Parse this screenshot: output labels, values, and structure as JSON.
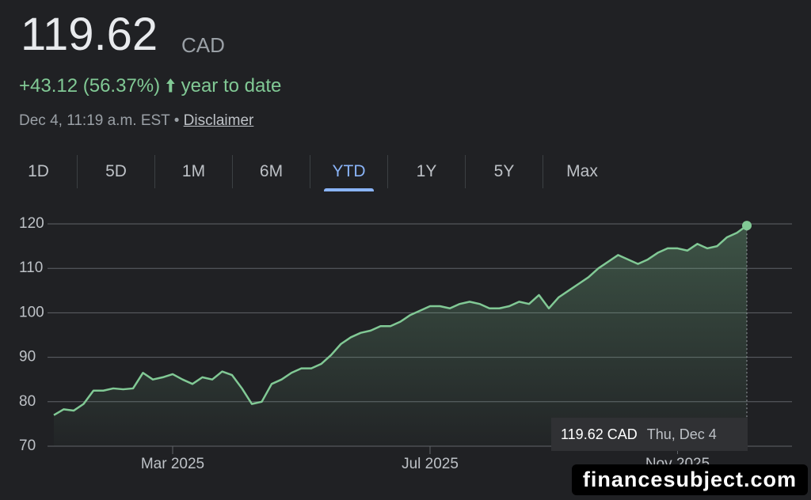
{
  "header": {
    "price": "119.62",
    "currency": "CAD",
    "change": "+43.12 (56.37%)",
    "period": "year to date",
    "timestamp": "Dec 4, 11:19 a.m. EST",
    "separator": "•",
    "disclaimer": "Disclaimer"
  },
  "tabs": [
    "1D",
    "5D",
    "1M",
    "6M",
    "YTD",
    "1Y",
    "5Y",
    "Max"
  ],
  "selected_tab": "YTD",
  "tooltip": {
    "value": "119.62 CAD",
    "date": "Thu, Dec 4"
  },
  "watermark": "financesubject.com",
  "chart_data": {
    "type": "line",
    "color": "#81c995",
    "grid": true,
    "ylim": [
      70,
      120
    ],
    "yticks": [
      70,
      80,
      90,
      100,
      110,
      120
    ],
    "categories": [
      null,
      null,
      null,
      null,
      null,
      null,
      null,
      null,
      null,
      null,
      null,
      null,
      "Mar 2025",
      null,
      null,
      null,
      null,
      null,
      null,
      null,
      null,
      null,
      null,
      null,
      null,
      null,
      null,
      null,
      null,
      null,
      null,
      null,
      null,
      null,
      null,
      null,
      null,
      null,
      "Jul 2025",
      null,
      null,
      null,
      null,
      null,
      null,
      null,
      null,
      null,
      null,
      null,
      null,
      null,
      null,
      null,
      null,
      null,
      null,
      null,
      null,
      null,
      null,
      null,
      null,
      "Nov 2025",
      null,
      null,
      null,
      null,
      null,
      null,
      null
    ],
    "values": [
      77,
      78.3,
      78,
      79.5,
      82.5,
      82.5,
      83,
      82.8,
      83,
      86.5,
      85,
      85.5,
      86.2,
      85,
      84,
      85.5,
      85,
      86.8,
      86,
      83,
      79.5,
      80,
      84,
      85,
      86.5,
      87.5,
      87.5,
      88.5,
      90.5,
      93,
      94.5,
      95.5,
      96,
      97,
      97,
      98,
      99.5,
      100.5,
      101.5,
      101.5,
      101,
      102,
      102.5,
      102,
      101,
      101,
      101.5,
      102.5,
      102,
      104,
      101,
      103.5,
      105,
      106.5,
      108,
      110,
      111.5,
      113,
      112,
      111,
      112,
      113.5,
      114.5,
      114.5,
      114,
      115.5,
      114.5,
      115,
      117,
      118,
      119.62
    ]
  }
}
